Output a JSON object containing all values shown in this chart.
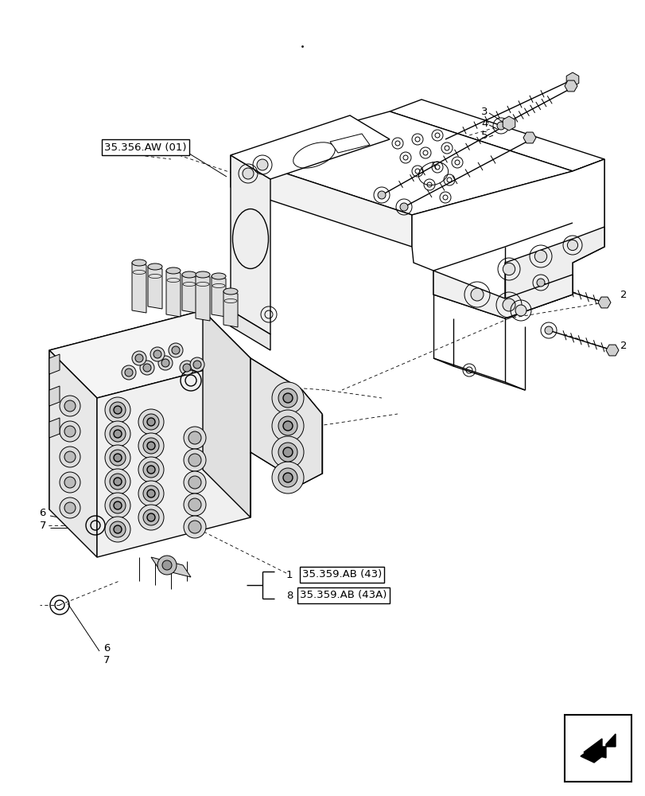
{
  "bg_color": "#ffffff",
  "lc": "#000000",
  "fig_width": 8.12,
  "fig_height": 10.0,
  "dpi": 100,
  "ref_label": "35.356.AW (01)",
  "item1_num": "1",
  "item1_ref": "35.359.AB (43)",
  "item8_num": "8",
  "item8_ref": "35.359.AB (43A)"
}
